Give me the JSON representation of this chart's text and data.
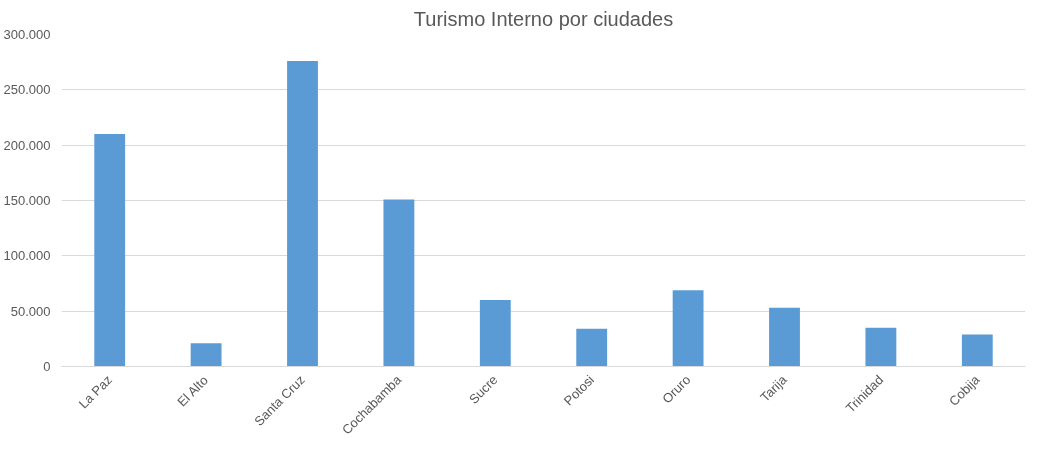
{
  "chart_data": {
    "type": "bar",
    "title": "Turismo Interno por ciudades",
    "categories": [
      "La Paz",
      "El Alto",
      "Santa Cruz",
      "Cochabamba",
      "Sucre",
      "Potosi",
      "Oruro",
      "Tarija",
      "Trinidad",
      "Cobija"
    ],
    "values": [
      210000,
      21000,
      276000,
      151000,
      60000,
      34000,
      69000,
      53000,
      35000,
      29000
    ],
    "color": "#5b9bd5",
    "ylim": [
      0,
      300000
    ],
    "yticks": [
      {
        "value": 0,
        "label": "0"
      },
      {
        "value": 50000,
        "label": "50.000"
      },
      {
        "value": 100000,
        "label": "100.000"
      },
      {
        "value": 150000,
        "label": "150.000"
      },
      {
        "value": 200000,
        "label": "200.000"
      },
      {
        "value": 250000,
        "label": "250.000"
      },
      {
        "value": 300000,
        "label": "300.000"
      }
    ],
    "grid": "y"
  }
}
